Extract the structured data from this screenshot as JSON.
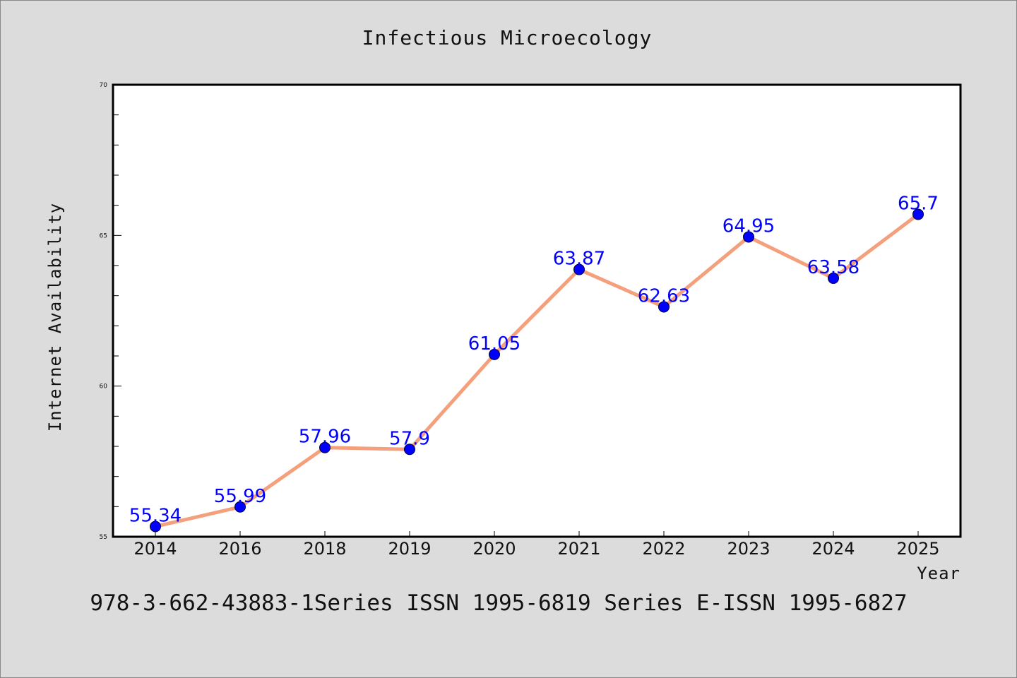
{
  "chart_data": {
    "type": "line",
    "title": "Infectious Microecology",
    "xlabel": "Year",
    "ylabel": "Internet Availability",
    "categories": [
      "2014",
      "2016",
      "2018",
      "2019",
      "2020",
      "2021",
      "2022",
      "2023",
      "2024",
      "2025"
    ],
    "series": [
      {
        "values": [
          55.34,
          55.99,
          57.96,
          57.9,
          61.05,
          63.87,
          62.63,
          64.95,
          63.58,
          65.7
        ],
        "labels": [
          "55.34",
          "55.99",
          "57.96",
          "57.9",
          "61.05",
          "63.87",
          "62.63",
          "64.95",
          "63.58",
          "65.7"
        ]
      }
    ],
    "ylim": [
      55,
      70
    ],
    "yticks": [
      55,
      60,
      65,
      70
    ],
    "ytick_labels": [
      "55",
      "60",
      "65",
      "70"
    ],
    "yminor_step": 1,
    "grid": false,
    "line_color": "#f4a07c",
    "marker_color": "#0000ff",
    "label_color": "#0000ff"
  },
  "footer_text": "978-3-662-43883-1Series ISSN 1995-6819 Series E-ISSN 1995-6827"
}
